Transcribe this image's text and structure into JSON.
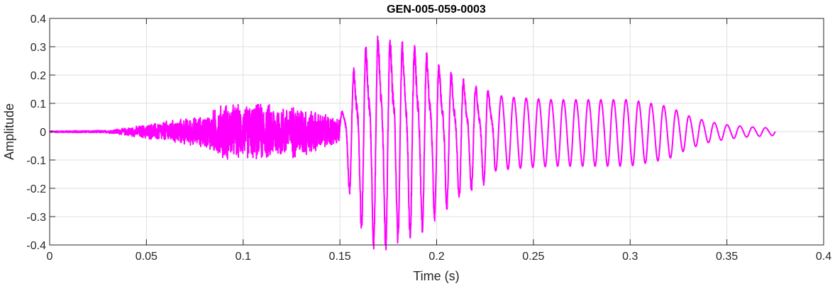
{
  "chart_data": {
    "type": "line",
    "title": "GEN-005-059-0003",
    "xlabel": "Time (s)",
    "ylabel": "Amplitude",
    "xlim": [
      0,
      0.4
    ],
    "ylim": [
      -0.4,
      0.4
    ],
    "x_ticks": [
      "0",
      "0.05",
      "0.1",
      "0.15",
      "0.2",
      "0.25",
      "0.3",
      "0.35",
      "0.4"
    ],
    "y_ticks": [
      "0.4",
      "0.3",
      "0.2",
      "0.1",
      "0",
      "-0.1",
      "-0.2",
      "-0.3",
      "-0.4"
    ],
    "grid": true,
    "series": [
      {
        "color": "#ff00ff",
        "duration": 0.375,
        "envelope": {
          "t": [
            0,
            0.03,
            0.04,
            0.06,
            0.08,
            0.09,
            0.1,
            0.11,
            0.12,
            0.13,
            0.14,
            0.15,
            0.155,
            0.16,
            0.165,
            0.17,
            0.18,
            0.19,
            0.2,
            0.21,
            0.22,
            0.23,
            0.24,
            0.26,
            0.3,
            0.32,
            0.33,
            0.34,
            0.35,
            0.36,
            0.375
          ],
          "a": [
            0.003,
            0.005,
            0.015,
            0.04,
            0.06,
            0.11,
            0.1,
            0.11,
            0.1,
            0.1,
            0.07,
            0.05,
            0.2,
            0.3,
            0.35,
            0.38,
            0.35,
            0.33,
            0.27,
            0.22,
            0.18,
            0.16,
            0.15,
            0.14,
            0.14,
            0.11,
            0.07,
            0.045,
            0.03,
            0.022,
            0.015
          ]
        }
      }
    ]
  }
}
